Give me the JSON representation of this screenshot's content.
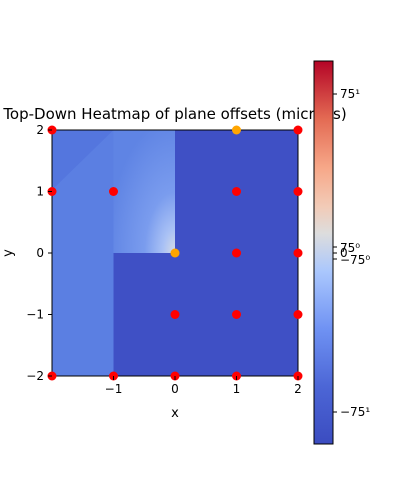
{
  "chart_data": {
    "type": "heatmap",
    "title": "Top-Down Heatmap of plane offsets (microns)",
    "xlabel": "x",
    "ylabel": "y",
    "xlim": [
      -2,
      2
    ],
    "ylim": [
      -2,
      2
    ],
    "x_ticks": [
      -1,
      0,
      1,
      2
    ],
    "x_tick_labels": [
      "−1",
      "0",
      "1",
      "2"
    ],
    "y_ticks": [
      -2,
      -1,
      0,
      1,
      2
    ],
    "y_tick_labels": [
      "−2",
      "−1",
      "0",
      "1",
      "2"
    ],
    "grid": false,
    "colormap": {
      "name": "coolwarm",
      "scale": "symlog",
      "low_color": "#3b4cc0",
      "mid_color": "#dddddd",
      "high_color": "#b40426",
      "tick_labels": [
        "75¹",
        "75⁰",
        "0",
        "−75⁰",
        "−75¹"
      ]
    },
    "regions": [
      {
        "description": "upper-right block",
        "x": [
          0,
          2
        ],
        "y": [
          0,
          2
        ],
        "level": "low"
      },
      {
        "description": "lower-right block",
        "x": [
          -1,
          2
        ],
        "y": [
          -2,
          0
        ],
        "level": "low"
      },
      {
        "description": "left band",
        "x": [
          -2,
          -1
        ],
        "y": [
          -2,
          2
        ],
        "level": "medium-low"
      },
      {
        "description": "gradient wedge near origin",
        "x": [
          -1,
          0
        ],
        "y": [
          0,
          2
        ],
        "level": "rising toward 0"
      }
    ],
    "points": [
      {
        "x": -2,
        "y": 2,
        "color": "red"
      },
      {
        "x": 2,
        "y": 2,
        "color": "red"
      },
      {
        "x": 1,
        "y": 2,
        "color": "orange"
      },
      {
        "x": -2,
        "y": 1,
        "color": "red"
      },
      {
        "x": -1,
        "y": 1,
        "color": "red"
      },
      {
        "x": 1,
        "y": 1,
        "color": "red"
      },
      {
        "x": 2,
        "y": 1,
        "color": "red"
      },
      {
        "x": 0,
        "y": 0,
        "color": "orange"
      },
      {
        "x": 1,
        "y": 0,
        "color": "red"
      },
      {
        "x": 2,
        "y": 0,
        "color": "red"
      },
      {
        "x": 0,
        "y": -1,
        "color": "red"
      },
      {
        "x": 1,
        "y": -1,
        "color": "red"
      },
      {
        "x": 2,
        "y": -1,
        "color": "red"
      },
      {
        "x": -2,
        "y": -2,
        "color": "red"
      },
      {
        "x": -1,
        "y": -2,
        "color": "red"
      },
      {
        "x": 0,
        "y": -2,
        "color": "red"
      },
      {
        "x": 1,
        "y": -2,
        "color": "red"
      },
      {
        "x": 2,
        "y": -2,
        "color": "red"
      }
    ]
  }
}
